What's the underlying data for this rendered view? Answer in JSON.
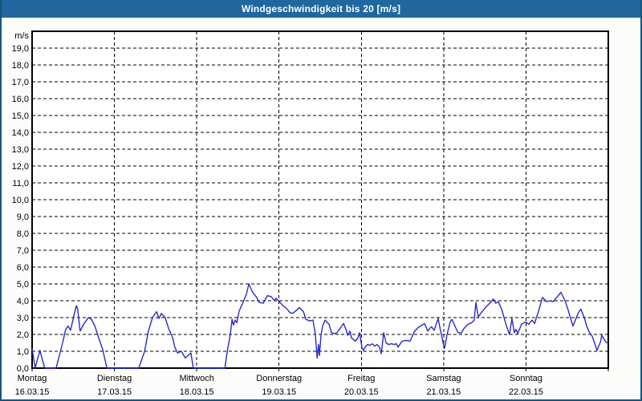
{
  "window": {
    "title": "Windgeschwindigkeit bis 20 [m/s]"
  },
  "colors": {
    "titlebar_bg": "#1f679e",
    "titlebar_text": "#ffffff",
    "frame": "#16567f",
    "content_bg": "#fcfdfb",
    "plot_bg": "#ffffff",
    "plot_border": "#000000",
    "grid": "#000000",
    "axis_text": "#000000",
    "line": "#2a2ac8"
  },
  "chart_data": {
    "type": "line",
    "title": "Windgeschwindigkeit bis 20 [m/s]",
    "ylabel": "m/s",
    "ylim": [
      0,
      20
    ],
    "ytick_interval": 1,
    "ytick_label_style": "decimal-comma",
    "grid": "dashed",
    "legend": "none",
    "x_unit": "hours",
    "xlim": [
      0,
      168
    ],
    "days": [
      {
        "name": "Montag",
        "date": "16.03.15"
      },
      {
        "name": "Dienstag",
        "date": "17.03.15"
      },
      {
        "name": "Mittwoch",
        "date": "18.03.15"
      },
      {
        "name": "Donnerstag",
        "date": "19.03.15"
      },
      {
        "name": "Freitag",
        "date": "20.03.15"
      },
      {
        "name": "Samstag",
        "date": "21.03.15"
      },
      {
        "name": "Sonntag",
        "date": "22.03.15"
      }
    ],
    "series": [
      {
        "name": "Windgeschwindigkeit",
        "unit": "m/s",
        "points": [
          [
            0,
            1.15
          ],
          [
            0.9,
            0
          ],
          [
            1.6,
            0.55
          ],
          [
            2.3,
            1.05
          ],
          [
            3,
            0.5
          ],
          [
            3.7,
            0
          ],
          [
            7,
            0
          ],
          [
            8.9,
            1.5
          ],
          [
            9.8,
            2.3
          ],
          [
            10.5,
            2.5
          ],
          [
            11.2,
            2.25
          ],
          [
            12.4,
            3.3
          ],
          [
            12.9,
            3.7
          ],
          [
            13.3,
            3.5
          ],
          [
            14,
            2.2
          ],
          [
            15,
            2.6
          ],
          [
            15.7,
            2.8
          ],
          [
            16.4,
            3
          ],
          [
            17.3,
            2.9
          ],
          [
            18.3,
            2.5
          ],
          [
            19.4,
            1.8
          ],
          [
            20.6,
            1.1
          ],
          [
            21.8,
            0
          ],
          [
            31.1,
            0
          ],
          [
            32.8,
            1
          ],
          [
            33.9,
            2.2
          ],
          [
            35.1,
            3
          ],
          [
            36.3,
            3.35
          ],
          [
            37,
            2.95
          ],
          [
            37.7,
            3.25
          ],
          [
            38.8,
            3
          ],
          [
            39.8,
            2.35
          ],
          [
            41,
            1.8
          ],
          [
            41.6,
            1.25
          ],
          [
            42.4,
            0.9
          ],
          [
            43.5,
            1
          ],
          [
            44.7,
            0.6
          ],
          [
            46.3,
            0.9
          ],
          [
            47,
            0
          ],
          [
            56.2,
            0
          ],
          [
            56.9,
            1
          ],
          [
            57.8,
            2
          ],
          [
            58.3,
            2.9
          ],
          [
            58.7,
            2.55
          ],
          [
            59.2,
            2.85
          ],
          [
            59.7,
            2.7
          ],
          [
            60.4,
            3.4
          ],
          [
            61.5,
            3.9
          ],
          [
            62.5,
            4.4
          ],
          [
            63.2,
            5
          ],
          [
            64.3,
            4.5
          ],
          [
            65.5,
            4.2
          ],
          [
            66.2,
            3.9
          ],
          [
            67.4,
            3.85
          ],
          [
            68.6,
            4.3
          ],
          [
            69.7,
            4.25
          ],
          [
            70.7,
            4
          ],
          [
            71.1,
            4.15
          ],
          [
            72.1,
            3.95
          ],
          [
            73.2,
            3.7
          ],
          [
            74.4,
            3.5
          ],
          [
            75.1,
            3.3
          ],
          [
            76,
            3.25
          ],
          [
            77.2,
            3.45
          ],
          [
            77.9,
            3.6
          ],
          [
            79.1,
            3.35
          ],
          [
            79.8,
            2.9
          ],
          [
            81,
            2.8
          ],
          [
            81.9,
            2.85
          ],
          [
            82.6,
            2
          ],
          [
            83.1,
            0.6
          ],
          [
            83.5,
            1.4
          ],
          [
            83.8,
            0.75
          ],
          [
            84.2,
            1.9
          ],
          [
            84.7,
            2.5
          ],
          [
            85.4,
            2.85
          ],
          [
            86.1,
            2.7
          ],
          [
            86.6,
            2.6
          ],
          [
            87.3,
            2.1
          ],
          [
            88.2,
            2.05
          ],
          [
            88.9,
            2.1
          ],
          [
            90.1,
            2.45
          ],
          [
            90.8,
            2.65
          ],
          [
            91.5,
            2.3
          ],
          [
            92,
            1.95
          ],
          [
            92.7,
            2.2
          ],
          [
            93.1,
            1.8
          ],
          [
            94.3,
            1.6
          ],
          [
            95,
            1.8
          ],
          [
            95.5,
            2.1
          ],
          [
            96.2,
            1.2
          ],
          [
            96.6,
            1.05
          ],
          [
            97.3,
            1.3
          ],
          [
            97.8,
            1.4
          ],
          [
            98.5,
            1.35
          ],
          [
            99.2,
            1.45
          ],
          [
            99.9,
            1.3
          ],
          [
            100.6,
            1.4
          ],
          [
            101.3,
            1.25
          ],
          [
            101.8,
            0.85
          ],
          [
            102.5,
            2.1
          ],
          [
            103.2,
            1.5
          ],
          [
            103.9,
            1.4
          ],
          [
            104.8,
            1.45
          ],
          [
            105.5,
            1.4
          ],
          [
            106.2,
            1.45
          ],
          [
            106.7,
            1.25
          ],
          [
            107.9,
            1.6
          ],
          [
            109,
            1.65
          ],
          [
            110.2,
            1.6
          ],
          [
            111.4,
            2.15
          ],
          [
            112.5,
            2.4
          ],
          [
            113.7,
            2.55
          ],
          [
            114.4,
            2.65
          ],
          [
            115.4,
            2.2
          ],
          [
            116.1,
            2.4
          ],
          [
            116.5,
            2.45
          ],
          [
            117.2,
            2.25
          ],
          [
            118.4,
            2.95
          ],
          [
            119.1,
            2.2
          ],
          [
            120,
            1.35
          ],
          [
            120.3,
            1.2
          ],
          [
            121,
            2
          ],
          [
            121.9,
            2.75
          ],
          [
            122.4,
            2.9
          ],
          [
            123.5,
            2.4
          ],
          [
            124.2,
            2.1
          ],
          [
            125.2,
            2.1
          ],
          [
            125.9,
            2.35
          ],
          [
            127.1,
            2.6
          ],
          [
            128.2,
            2.7
          ],
          [
            128.9,
            2.85
          ],
          [
            129.4,
            3.9
          ],
          [
            130.1,
            3.05
          ],
          [
            131,
            3.3
          ],
          [
            132.2,
            3.6
          ],
          [
            133.4,
            3.85
          ],
          [
            134.5,
            4.1
          ],
          [
            135.2,
            3.85
          ],
          [
            135.9,
            3.95
          ],
          [
            136.9,
            3.5
          ],
          [
            137.6,
            3
          ],
          [
            138.3,
            2.5
          ],
          [
            139.2,
            2
          ],
          [
            139.9,
            2.95
          ],
          [
            140.6,
            2.1
          ],
          [
            141.1,
            2.3
          ],
          [
            141.6,
            2.05
          ],
          [
            142.7,
            2.6
          ],
          [
            143.9,
            2.75
          ],
          [
            144.8,
            2.6
          ],
          [
            145.8,
            2.85
          ],
          [
            146.5,
            2.65
          ],
          [
            147.7,
            3.4
          ],
          [
            148.8,
            4.2
          ],
          [
            150,
            3.95
          ],
          [
            150.9,
            4
          ],
          [
            151.9,
            3.95
          ],
          [
            153,
            4.2
          ],
          [
            154.2,
            4.5
          ],
          [
            155.4,
            4
          ],
          [
            156.3,
            3.45
          ],
          [
            157,
            2.95
          ],
          [
            157.7,
            2.5
          ],
          [
            158.6,
            2.95
          ],
          [
            159.3,
            3.3
          ],
          [
            160,
            3.5
          ],
          [
            161,
            3
          ],
          [
            161.7,
            2.5
          ],
          [
            162.4,
            2.15
          ],
          [
            163.3,
            1.9
          ],
          [
            164,
            1.5
          ],
          [
            164.7,
            1.05
          ],
          [
            165.7,
            1.55
          ],
          [
            166.1,
            1.95
          ],
          [
            167.1,
            1.6
          ],
          [
            168,
            1.45
          ]
        ]
      }
    ]
  }
}
